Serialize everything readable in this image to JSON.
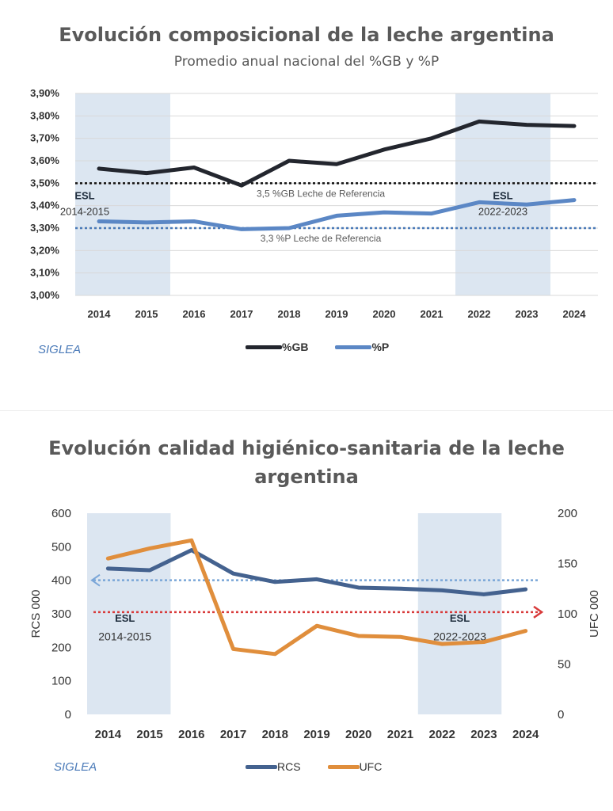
{
  "chart_data": [
    {
      "type": "line",
      "title": "Evolución composicional de la leche argentina",
      "subtitle": "Promedio anual nacional del %GB y %P",
      "categories": [
        "2014",
        "2015",
        "2016",
        "2017",
        "2018",
        "2019",
        "2020",
        "2021",
        "2022",
        "2023",
        "2024"
      ],
      "y_ticks": [
        "3,00%",
        "3,10%",
        "3,20%",
        "3,30%",
        "3,40%",
        "3,50%",
        "3,60%",
        "3,70%",
        "3,80%",
        "3,90%"
      ],
      "ylim": [
        3.0,
        3.9
      ],
      "series": [
        {
          "name": "%GB",
          "color": "#23262e",
          "values": [
            3.565,
            3.545,
            3.57,
            3.49,
            3.6,
            3.585,
            3.65,
            3.7,
            3.775,
            3.76,
            3.755
          ]
        },
        {
          "name": "%P",
          "color": "#5b87c5",
          "values": [
            3.33,
            3.325,
            3.33,
            3.295,
            3.3,
            3.355,
            3.37,
            3.365,
            3.415,
            3.405,
            3.425
          ]
        }
      ],
      "reference_lines": [
        {
          "value": 3.5,
          "label": "3,5 %GB Leche de Referencia",
          "color": "#111111"
        },
        {
          "value": 3.3,
          "label": "3,3 %P Leche de Referencia",
          "color": "#4a7ab8"
        }
      ],
      "shaded_periods": [
        {
          "from": "2014",
          "to": "2015",
          "label": "ESL",
          "sublabel": "2014-2015"
        },
        {
          "from": "2022",
          "to": "2023",
          "label": "ESL",
          "sublabel": "2022-2023"
        }
      ],
      "legend": "bottom-center",
      "grid": true,
      "source": "SIGLEA"
    },
    {
      "type": "line",
      "title": "Evolución calidad higiénico-sanitaria de la leche argentina",
      "categories": [
        "2014",
        "2015",
        "2016",
        "2017",
        "2018",
        "2019",
        "2020",
        "2021",
        "2022",
        "2023",
        "2024"
      ],
      "ylabel": "RCS 000",
      "y2label": "UFC 000",
      "ylim": [
        0,
        600
      ],
      "y2lim": [
        0,
        200
      ],
      "y_ticks": [
        "0",
        "100",
        "200",
        "300",
        "400",
        "500",
        "600"
      ],
      "y2_ticks": [
        "0",
        "50",
        "100",
        "150",
        "200"
      ],
      "series": [
        {
          "name": "RCS",
          "axis": "left",
          "color": "#44628f",
          "values": [
            435,
            430,
            490,
            420,
            395,
            403,
            378,
            375,
            370,
            358,
            373
          ]
        },
        {
          "name": "UFC",
          "axis": "right",
          "color": "#e08e3c",
          "values": [
            155,
            165,
            173,
            65,
            60,
            88,
            78,
            77,
            70,
            72,
            83
          ]
        }
      ],
      "reference_lines": [
        {
          "axis": "left",
          "value": 400,
          "color": "#7aa6d8",
          "direction": "left"
        },
        {
          "axis": "left",
          "value": 305,
          "color": "#d83a3a",
          "direction": "right"
        }
      ],
      "shaded_periods": [
        {
          "from": "2014",
          "to": "2015",
          "label": "ESL",
          "sublabel": "2014-2015"
        },
        {
          "from": "2022",
          "to": "2023",
          "label": "ESL",
          "sublabel": "2022-2023"
        }
      ],
      "legend": "bottom-center",
      "grid": false,
      "source": "SIGLEA"
    }
  ]
}
